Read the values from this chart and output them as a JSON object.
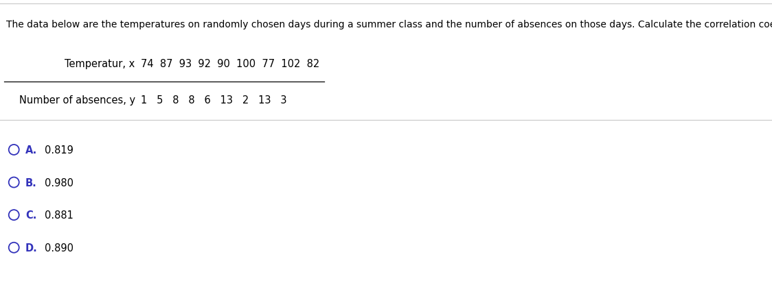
{
  "title": "The data below are the temperatures on randomly chosen days during a summer class and the number of absences on those days. Calculate the correlation coefficient, r.",
  "title_color": "#000000",
  "title_fontsize": 10.0,
  "row1_label": "Temperatur, x",
  "row1_values": "74  87  93  92  90  100  77  102  82",
  "row2_label": "Number of absences, y",
  "row2_values": "1   5   8   8   6   13   2   13   3",
  "options": [
    {
      "letter": "A.",
      "value": "0.819"
    },
    {
      "letter": "B.",
      "value": "0.980"
    },
    {
      "letter": "C.",
      "value": "0.881"
    },
    {
      "letter": "D.",
      "value": "0.890"
    }
  ],
  "option_letter_color": "#3333bb",
  "option_value_color": "#000000",
  "option_fontsize": 10.5,
  "bg_color": "#ffffff",
  "table_label_color": "#000000",
  "table_value_color": "#000000",
  "table_fontsize": 10.5,
  "circle_color": "#3333bb",
  "line_color_top": "#cccccc",
  "line_color_table": "#000000",
  "line_color_sep": "#cccccc"
}
